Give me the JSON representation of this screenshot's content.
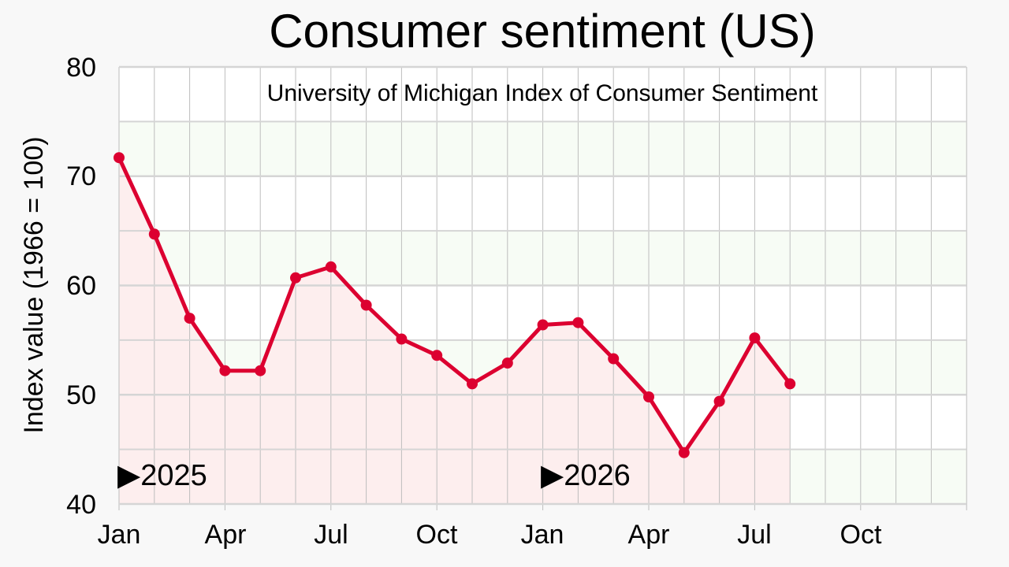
{
  "chart_data": {
    "type": "line",
    "title": "Consumer sentiment (US)",
    "subtitle": "University of Michigan Index of Consumer Sentiment",
    "xlabel": "",
    "ylabel": "Index value (1966 = 100)",
    "ylim": [
      40,
      80
    ],
    "yticks": [
      "40",
      "50",
      "60",
      "70",
      "80"
    ],
    "x_ticks": [
      "Jan",
      "Apr",
      "Jul",
      "Oct",
      "Jan",
      "Apr",
      "Jul",
      "Oct"
    ],
    "year_markers": [
      "▶2025",
      "▶2026"
    ],
    "x": [
      "2025-01",
      "2025-02",
      "2025-03",
      "2025-04",
      "2025-05",
      "2025-06",
      "2025-07",
      "2025-08",
      "2025-09",
      "2025-10",
      "2025-11",
      "2025-12",
      "2026-01",
      "2026-02",
      "2026-03",
      "2026-04",
      "2026-05",
      "2026-06",
      "2026-07",
      "2026-08"
    ],
    "series": [
      {
        "values": [
          71.7,
          64.7,
          57.0,
          52.2,
          52.2,
          60.7,
          61.7,
          58.2,
          55.1,
          53.6,
          51.0,
          52.9,
          56.4,
          56.6,
          53.3,
          49.8,
          44.7,
          49.4,
          55.2,
          51.0
        ]
      }
    ],
    "grid": true,
    "colors": {
      "line": "#dc0030",
      "fill": "#fdeeee",
      "band": "#f7fcf5"
    }
  }
}
